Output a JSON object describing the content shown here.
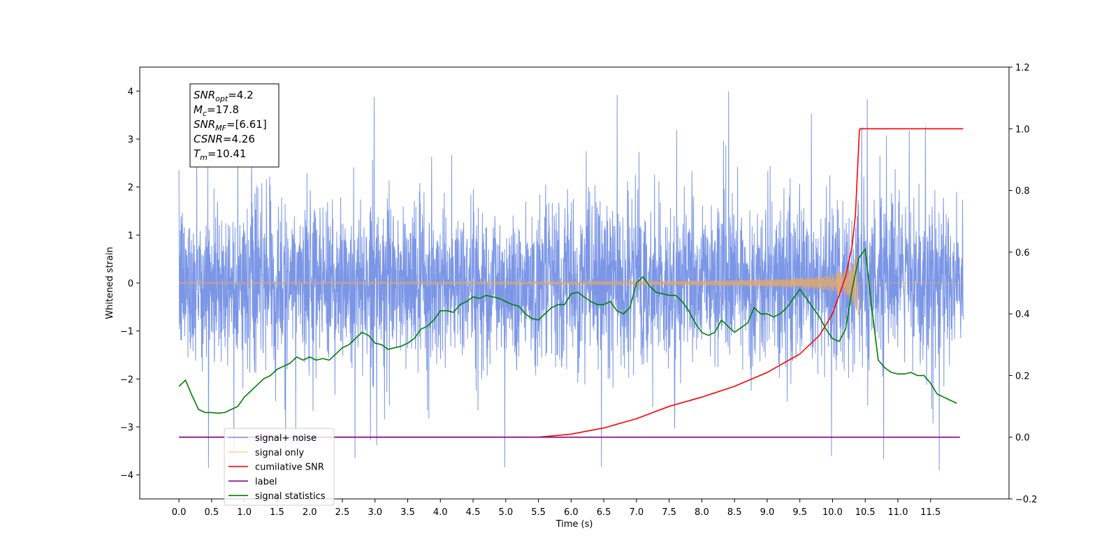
{
  "chart_data": {
    "type": "line",
    "title": "",
    "xlabel": "Time (s)",
    "ylabel": "Whitened strain",
    "xlim": [
      -0.6,
      12.7
    ],
    "ylim": [
      -4.5,
      4.5
    ],
    "y2lim": [
      -0.2,
      1.2
    ],
    "x_ticks": [
      0.0,
      0.5,
      1.0,
      1.5,
      2.0,
      2.5,
      3.0,
      3.5,
      4.0,
      4.5,
      5.0,
      5.5,
      6.0,
      6.5,
      7.0,
      7.5,
      8.0,
      8.5,
      9.0,
      9.5,
      10.0,
      10.5,
      11.0,
      11.5
    ],
    "x_tick_labels": [
      "0.0",
      "0.5",
      "1.0",
      "1.5",
      "2.0",
      "2.5",
      "3.0",
      "3.5",
      "4.0",
      "4.5",
      "5.0",
      "5.5",
      "6.0",
      "6.5",
      "7.0",
      "7.5",
      "8.0",
      "8.5",
      "9.0",
      "9.5",
      "10.0",
      "10.5",
      "11.0",
      "11.5"
    ],
    "y_ticks": [
      -4,
      -3,
      -2,
      -1,
      0,
      1,
      2,
      3,
      4
    ],
    "y_tick_labels": [
      "−4",
      "−3",
      "−2",
      "−1",
      "0",
      "1",
      "2",
      "3",
      "4"
    ],
    "y2_ticks": [
      -0.2,
      0.0,
      0.2,
      0.4,
      0.6,
      0.8,
      1.0,
      1.2
    ],
    "y2_tick_labels": [
      "−0.2",
      "0.0",
      "0.2",
      "0.4",
      "0.6",
      "0.8",
      "1.0",
      "1.2"
    ],
    "grid": false,
    "legend_position": "lower-left",
    "colors": {
      "signal_noise": "#7b96e6",
      "signal_only": "#e0a86f",
      "cumulative_snr": "#ff0000",
      "label": "#800080",
      "signal_statistics": "#008000"
    },
    "series": [
      {
        "name": "signal+ noise",
        "axis": "left",
        "color": "#7b96e6",
        "description_values": {
          "x_start": 0.0,
          "x_end": 12.0,
          "typical_envelope": [
            -2.2,
            2.2
          ],
          "max": 4.15,
          "min": -4.05
        }
      },
      {
        "name": "signal only",
        "axis": "left",
        "color": "#e0a86f",
        "chirp": {
          "x_start": 0.0,
          "x_end": 12.0,
          "merger_time": 10.41,
          "peak_amplitude": 0.95
        }
      },
      {
        "name": "cumilative SNR",
        "axis": "right",
        "color": "#ff0000",
        "x": [
          0.0,
          5.5,
          6.0,
          6.5,
          7.0,
          7.5,
          8.0,
          8.5,
          9.0,
          9.5,
          9.8,
          10.0,
          10.2,
          10.3,
          10.35,
          10.41,
          10.42,
          12.0
        ],
        "values": [
          0.0,
          0.0,
          0.01,
          0.03,
          0.06,
          0.1,
          0.13,
          0.165,
          0.21,
          0.27,
          0.33,
          0.4,
          0.52,
          0.62,
          0.72,
          0.99,
          1.0,
          1.0
        ]
      },
      {
        "name": "label",
        "axis": "right",
        "color": "#800080",
        "x": [
          0.0,
          11.95
        ],
        "values": [
          0.0,
          0.0
        ]
      },
      {
        "name": "signal statistics",
        "axis": "right",
        "color": "#008000",
        "x": [
          0.0,
          0.1,
          0.2,
          0.3,
          0.4,
          0.5,
          0.6,
          0.7,
          0.8,
          0.9,
          1.0,
          1.1,
          1.2,
          1.3,
          1.4,
          1.5,
          1.6,
          1.7,
          1.8,
          1.9,
          2.0,
          2.1,
          2.2,
          2.3,
          2.4,
          2.5,
          2.6,
          2.7,
          2.8,
          2.9,
          3.0,
          3.1,
          3.2,
          3.3,
          3.4,
          3.5,
          3.6,
          3.7,
          3.8,
          3.9,
          4.0,
          4.1,
          4.2,
          4.3,
          4.4,
          4.5,
          4.6,
          4.7,
          4.8,
          4.9,
          5.0,
          5.1,
          5.2,
          5.3,
          5.4,
          5.5,
          5.6,
          5.7,
          5.8,
          5.9,
          6.0,
          6.1,
          6.2,
          6.3,
          6.4,
          6.5,
          6.6,
          6.7,
          6.8,
          6.9,
          7.0,
          7.1,
          7.2,
          7.3,
          7.4,
          7.5,
          7.6,
          7.7,
          7.8,
          7.9,
          8.0,
          8.1,
          8.2,
          8.3,
          8.4,
          8.5,
          8.6,
          8.7,
          8.8,
          8.9,
          9.0,
          9.1,
          9.2,
          9.3,
          9.4,
          9.5,
          9.6,
          9.7,
          9.8,
          9.9,
          10.0,
          10.1,
          10.2,
          10.3,
          10.4,
          10.5,
          10.6,
          10.7,
          10.8,
          10.9,
          11.0,
          11.1,
          11.2,
          11.3,
          11.4,
          11.5,
          11.6,
          11.7,
          11.8,
          11.9
        ],
        "values": [
          0.165,
          0.185,
          0.135,
          0.09,
          0.08,
          0.08,
          0.078,
          0.08,
          0.09,
          0.1,
          0.13,
          0.15,
          0.17,
          0.19,
          0.2,
          0.22,
          0.23,
          0.24,
          0.26,
          0.25,
          0.26,
          0.25,
          0.255,
          0.25,
          0.27,
          0.29,
          0.3,
          0.32,
          0.34,
          0.33,
          0.305,
          0.3,
          0.285,
          0.29,
          0.295,
          0.305,
          0.32,
          0.35,
          0.36,
          0.38,
          0.41,
          0.41,
          0.405,
          0.43,
          0.44,
          0.455,
          0.45,
          0.46,
          0.455,
          0.45,
          0.44,
          0.43,
          0.425,
          0.4,
          0.385,
          0.38,
          0.4,
          0.42,
          0.43,
          0.43,
          0.465,
          0.47,
          0.455,
          0.44,
          0.43,
          0.43,
          0.44,
          0.41,
          0.4,
          0.42,
          0.5,
          0.52,
          0.49,
          0.47,
          0.465,
          0.46,
          0.46,
          0.44,
          0.41,
          0.37,
          0.34,
          0.33,
          0.34,
          0.38,
          0.36,
          0.34,
          0.355,
          0.37,
          0.42,
          0.4,
          0.4,
          0.39,
          0.4,
          0.42,
          0.45,
          0.48,
          0.45,
          0.42,
          0.39,
          0.35,
          0.32,
          0.31,
          0.35,
          0.48,
          0.58,
          0.61,
          0.42,
          0.25,
          0.225,
          0.21,
          0.205,
          0.205,
          0.21,
          0.2,
          0.2,
          0.175,
          0.14,
          0.13,
          0.12,
          0.11
        ]
      }
    ],
    "legend": [
      {
        "label": "signal+ noise",
        "color": "#7b96e6"
      },
      {
        "label": "signal only",
        "color": "#ffd590"
      },
      {
        "label": "cumilative SNR",
        "color": "#ff0000"
      },
      {
        "label": "label",
        "color": "#800080"
      },
      {
        "label": "signal statistics",
        "color": "#008000"
      }
    ],
    "stats_box": [
      {
        "base": "SNR",
        "sub": "opt",
        "rest": "=4.2"
      },
      {
        "base": "M",
        "sub": "c",
        "rest": "=17.8"
      },
      {
        "base": "SNR",
        "sub": "MF",
        "rest": "=[6.61]"
      },
      {
        "base": "CSNR",
        "sub": "",
        "rest": "=4.26"
      },
      {
        "base": "T",
        "sub": "m",
        "rest": "=10.41"
      }
    ]
  }
}
